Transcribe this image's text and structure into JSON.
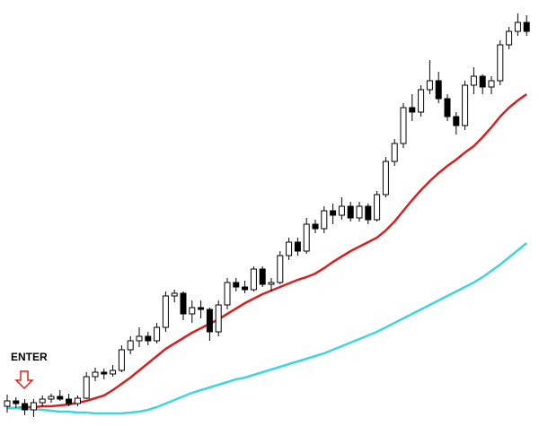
{
  "chart_data": {
    "type": "candlestick",
    "annotation": "ENTER",
    "ylim": [
      0,
      475
    ],
    "up_color": "#ffffff",
    "down_color": "#000000",
    "wick_color": "#000000",
    "open": [
      22,
      28,
      25,
      18,
      26,
      30,
      33,
      30,
      25,
      31,
      55,
      60,
      58,
      62,
      85,
      95,
      100,
      95,
      110,
      145,
      148,
      125,
      132,
      130,
      105,
      135,
      160,
      155,
      152,
      175,
      158,
      160,
      190,
      205,
      195,
      225,
      220,
      240,
      235,
      245,
      232,
      245,
      230,
      258,
      295,
      315,
      355,
      350,
      375,
      385,
      365,
      345,
      335,
      380,
      390,
      378,
      385,
      425,
      440,
      450
    ],
    "high": [
      35,
      32,
      30,
      30,
      34,
      36,
      40,
      36,
      34,
      60,
      65,
      64,
      68,
      90,
      100,
      110,
      105,
      115,
      150,
      152,
      150,
      140,
      140,
      132,
      140,
      165,
      165,
      162,
      178,
      178,
      165,
      195,
      210,
      210,
      232,
      230,
      245,
      248,
      255,
      250,
      250,
      248,
      262,
      300,
      320,
      360,
      370,
      380,
      408,
      395,
      370,
      350,
      385,
      400,
      392,
      390,
      430,
      445,
      460,
      458
    ],
    "low": [
      15,
      20,
      12,
      10,
      22,
      26,
      28,
      22,
      22,
      30,
      50,
      52,
      55,
      60,
      80,
      88,
      90,
      92,
      105,
      138,
      118,
      115,
      120,
      95,
      100,
      130,
      150,
      148,
      150,
      155,
      150,
      158,
      185,
      190,
      192,
      215,
      215,
      225,
      230,
      228,
      228,
      225,
      228,
      255,
      290,
      310,
      340,
      345,
      370,
      360,
      340,
      325,
      330,
      370,
      370,
      370,
      380,
      420,
      435,
      435
    ],
    "close": [
      28,
      25,
      18,
      26,
      30,
      33,
      30,
      25,
      31,
      55,
      60,
      58,
      62,
      85,
      95,
      100,
      95,
      110,
      145,
      148,
      125,
      132,
      130,
      105,
      135,
      160,
      155,
      152,
      175,
      158,
      160,
      190,
      205,
      195,
      225,
      220,
      240,
      235,
      245,
      232,
      245,
      230,
      258,
      295,
      315,
      355,
      350,
      375,
      385,
      365,
      345,
      335,
      380,
      390,
      378,
      385,
      425,
      440,
      450,
      440
    ],
    "lines": [
      {
        "color": "#d62020",
        "values": [
          20,
          20,
          21,
          21,
          22,
          22,
          23,
          24,
          26,
          28,
          31,
          34,
          40,
          47,
          54,
          62,
          70,
          78,
          86,
          92,
          98,
          104,
          109,
          114,
          119,
          125,
          131,
          137,
          142,
          147,
          151,
          155,
          159,
          163,
          166,
          170,
          176,
          183,
          189,
          195,
          200,
          205,
          210,
          218,
          228,
          240,
          252,
          263,
          273,
          282,
          290,
          297,
          305,
          312,
          322,
          333,
          345,
          355,
          363,
          370
        ]
      },
      {
        "color": "#3dd6e0",
        "values": [
          20,
          20,
          19,
          19,
          18,
          17,
          16,
          16,
          15,
          15,
          14,
          14,
          14,
          14,
          15,
          16,
          18,
          21,
          25,
          29,
          33,
          37,
          40,
          43,
          46,
          49,
          52,
          54,
          57,
          60,
          63,
          66,
          69,
          72,
          75,
          78,
          81,
          85,
          89,
          93,
          97,
          101,
          105,
          110,
          115,
          120,
          125,
          130,
          135,
          140,
          145,
          150,
          155,
          160,
          166,
          173,
          180,
          188,
          196,
          204
        ]
      }
    ]
  }
}
